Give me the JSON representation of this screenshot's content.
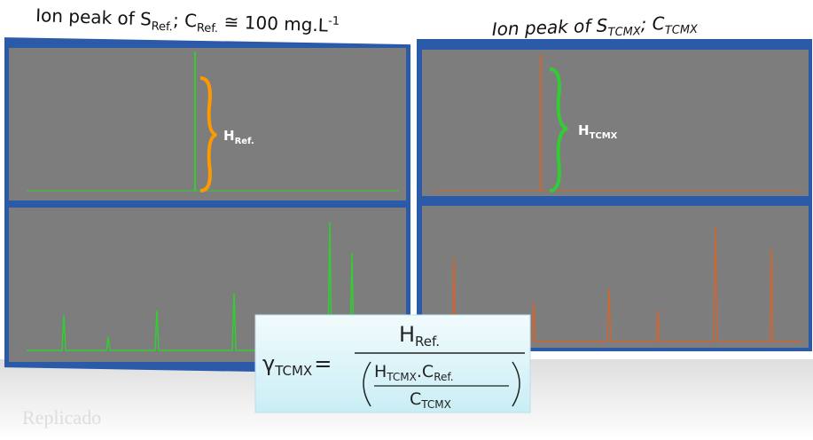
{
  "left_title": {
    "text": "Ion peak of S",
    "sub1": "Ref.",
    "mid": "; C",
    "sub2": "Ref.",
    "rest": " ≅ 100 mg.L",
    "sup": "-1"
  },
  "right_title": {
    "text": "Ion peak of S",
    "sub1": "TCMX",
    "mid": "; C",
    "sub2": "TCMX"
  },
  "left_label": {
    "text": "H",
    "sub": "Ref."
  },
  "right_label": {
    "text": "H",
    "sub": "TCMX"
  },
  "formula": {
    "lhs": "γ",
    "lhs_sub": "TCMX",
    "equals": "=",
    "numerator": "H",
    "numerator_sub": "Ref.",
    "denominator": {
      "h": "H",
      "h_sub": "TCMX",
      "dot_c": ".C",
      "c_sub": "Ref.",
      "c": "C",
      "c_bottom_sub": "TCMX"
    }
  },
  "watermark": "Replicado"
}
